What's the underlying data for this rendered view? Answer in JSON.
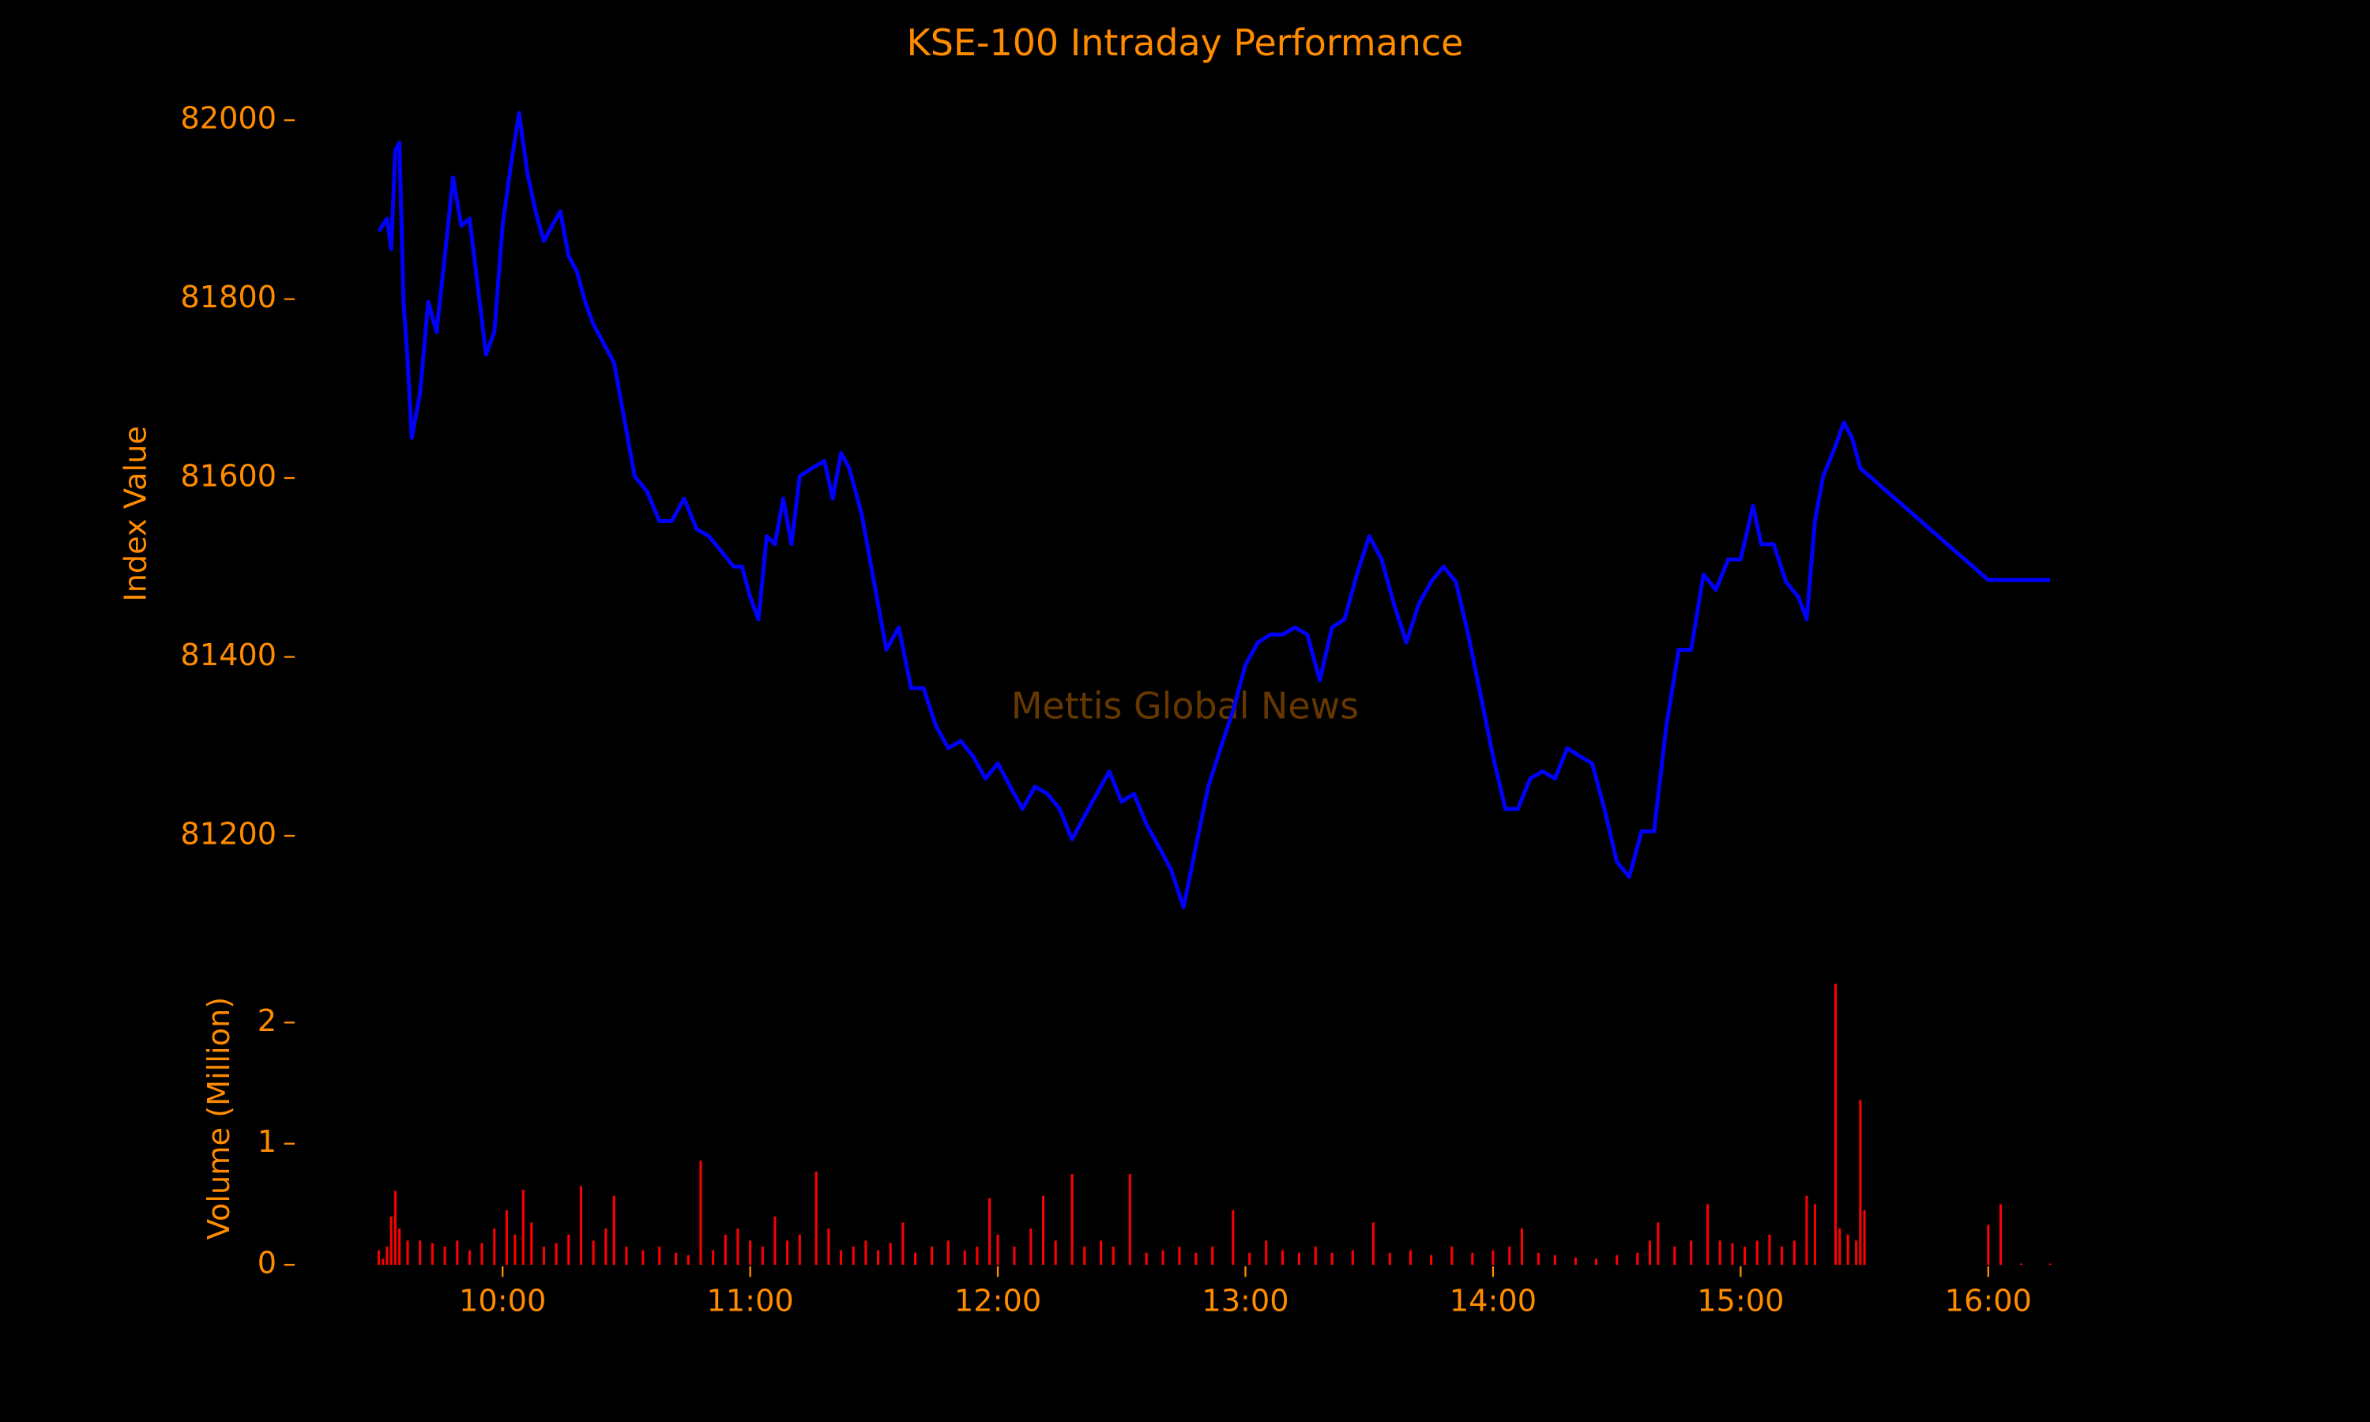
{
  "chart_data": [
    {
      "type": "line",
      "title": "KSE-100 Intraday Performance",
      "ylabel": "Index Value",
      "annotation": "Mettis Global News",
      "color": "#0000ff",
      "xlim": [
        "09:10",
        "16:35"
      ],
      "ylim": [
        81065,
        82055
      ],
      "yticks": [
        81200,
        81400,
        81600,
        81800,
        82000
      ],
      "x": [
        "09:30",
        "09:32",
        "09:33",
        "09:34",
        "09:35",
        "09:36",
        "09:37",
        "09:38",
        "09:40",
        "09:42",
        "09:44",
        "09:46",
        "09:48",
        "09:50",
        "09:52",
        "09:54",
        "09:56",
        "09:58",
        "10:00",
        "10:02",
        "10:04",
        "10:06",
        "10:08",
        "10:10",
        "10:12",
        "10:14",
        "10:16",
        "10:18",
        "10:20",
        "10:22",
        "10:25",
        "10:27",
        "10:30",
        "10:32",
        "10:35",
        "10:38",
        "10:41",
        "10:44",
        "10:47",
        "10:50",
        "10:53",
        "10:56",
        "10:58",
        "11:00",
        "11:02",
        "11:04",
        "11:06",
        "11:08",
        "11:10",
        "11:12",
        "11:15",
        "11:18",
        "11:20",
        "11:22",
        "11:24",
        "11:27",
        "11:30",
        "11:33",
        "11:36",
        "11:39",
        "11:42",
        "11:45",
        "11:48",
        "11:51",
        "11:54",
        "11:57",
        "12:00",
        "12:03",
        "12:06",
        "12:09",
        "12:12",
        "12:15",
        "12:18",
        "12:21",
        "12:24",
        "12:27",
        "12:30",
        "12:33",
        "12:36",
        "12:39",
        "12:42",
        "12:45",
        "12:48",
        "12:51",
        "12:54",
        "12:57",
        "13:00",
        "13:03",
        "13:06",
        "13:09",
        "13:12",
        "13:15",
        "13:18",
        "13:21",
        "13:24",
        "13:27",
        "13:30",
        "13:33",
        "13:36",
        "13:39",
        "13:42",
        "13:45",
        "13:48",
        "13:51",
        "13:54",
        "13:57",
        "14:00",
        "14:03",
        "14:06",
        "14:09",
        "14:12",
        "14:15",
        "14:18",
        "14:21",
        "14:24",
        "14:27",
        "14:30",
        "14:33",
        "14:36",
        "14:39",
        "14:42",
        "14:45",
        "14:48",
        "14:51",
        "14:54",
        "14:57",
        "15:00",
        "15:03",
        "15:05",
        "15:08",
        "15:11",
        "15:14",
        "15:16",
        "15:18",
        "15:20",
        "15:23",
        "15:25",
        "15:27",
        "15:29",
        "16:00",
        "16:15"
      ],
      "values": [
        81876,
        81890,
        81856,
        81966,
        81975,
        81797,
        81730,
        81645,
        81695,
        81797,
        81763,
        81848,
        81936,
        81882,
        81890,
        81814,
        81738,
        81763,
        81882,
        81949,
        82008,
        81941,
        81898,
        81865,
        81882,
        81898,
        81848,
        81831,
        81797,
        81772,
        81746,
        81729,
        81653,
        81602,
        81585,
        81552,
        81552,
        81577,
        81543,
        81535,
        81518,
        81501,
        81501,
        81467,
        81442,
        81535,
        81526,
        81577,
        81526,
        81602,
        81611,
        81619,
        81577,
        81628,
        81611,
        81560,
        81484,
        81408,
        81433,
        81365,
        81365,
        81323,
        81298,
        81306,
        81289,
        81264,
        81281,
        81255,
        81230,
        81255,
        81247,
        81230,
        81196,
        81222,
        81247,
        81272,
        81238,
        81247,
        81213,
        81188,
        81162,
        81120,
        81188,
        81255,
        81298,
        81340,
        81391,
        81416,
        81425,
        81425,
        81433,
        81425,
        81374,
        81433,
        81442,
        81492,
        81535,
        81509,
        81459,
        81416,
        81459,
        81484,
        81501,
        81484,
        81425,
        81357,
        81289,
        81230,
        81230,
        81264,
        81272,
        81264,
        81298,
        81289,
        81281,
        81230,
        81171,
        81154,
        81205,
        81205,
        81323,
        81408,
        81408,
        81492,
        81475,
        81509,
        81509,
        81569,
        81526,
        81526,
        81484,
        81467,
        81442,
        81552,
        81602,
        81636,
        81662,
        81645,
        81611,
        81486,
        81486
      ]
    },
    {
      "type": "bar",
      "ylabel": "Volume (Million)",
      "color": "#ff0000",
      "xlim": [
        "09:10",
        "16:35"
      ],
      "ylim": [
        0,
        2.42
      ],
      "yticks": [
        0,
        1,
        2
      ],
      "xticks": [
        "10:00",
        "11:00",
        "12:00",
        "13:00",
        "14:00",
        "15:00",
        "16:00"
      ],
      "x": [
        "09:30",
        "09:31",
        "09:32",
        "09:33",
        "09:34",
        "09:35",
        "09:37",
        "09:40",
        "09:43",
        "09:46",
        "09:49",
        "09:52",
        "09:55",
        "09:58",
        "10:01",
        "10:03",
        "10:05",
        "10:07",
        "10:10",
        "10:13",
        "10:16",
        "10:19",
        "10:22",
        "10:25",
        "10:27",
        "10:30",
        "10:34",
        "10:38",
        "10:42",
        "10:45",
        "10:48",
        "10:51",
        "10:54",
        "10:57",
        "11:00",
        "11:03",
        "11:06",
        "11:09",
        "11:12",
        "11:16",
        "11:19",
        "11:22",
        "11:25",
        "11:28",
        "11:31",
        "11:34",
        "11:37",
        "11:40",
        "11:44",
        "11:48",
        "11:52",
        "11:55",
        "11:58",
        "12:00",
        "12:04",
        "12:08",
        "12:11",
        "12:14",
        "12:18",
        "12:21",
        "12:25",
        "12:28",
        "12:32",
        "12:36",
        "12:40",
        "12:44",
        "12:48",
        "12:52",
        "12:57",
        "13:01",
        "13:05",
        "13:09",
        "13:13",
        "13:17",
        "13:21",
        "13:26",
        "13:31",
        "13:35",
        "13:40",
        "13:45",
        "13:50",
        "13:55",
        "14:00",
        "14:04",
        "14:07",
        "14:11",
        "14:15",
        "14:20",
        "14:25",
        "14:30",
        "14:35",
        "14:38",
        "14:40",
        "14:44",
        "14:48",
        "14:52",
        "14:55",
        "14:58",
        "15:01",
        "15:04",
        "15:07",
        "15:10",
        "15:13",
        "15:16",
        "15:18",
        "15:23",
        "15:24",
        "15:26",
        "15:28",
        "15:29",
        "15:30",
        "16:00",
        "16:03",
        "16:08",
        "16:15"
      ],
      "values": [
        0.12,
        0.05,
        0.15,
        0.4,
        0.61,
        0.3,
        0.2,
        0.2,
        0.18,
        0.15,
        0.2,
        0.12,
        0.18,
        0.3,
        0.45,
        0.25,
        0.62,
        0.35,
        0.15,
        0.18,
        0.25,
        0.65,
        0.2,
        0.3,
        0.57,
        0.15,
        0.12,
        0.15,
        0.1,
        0.08,
        0.86,
        0.12,
        0.25,
        0.3,
        0.2,
        0.15,
        0.4,
        0.2,
        0.25,
        0.77,
        0.3,
        0.12,
        0.15,
        0.2,
        0.12,
        0.18,
        0.35,
        0.1,
        0.15,
        0.2,
        0.12,
        0.15,
        0.55,
        0.25,
        0.15,
        0.3,
        0.57,
        0.2,
        0.75,
        0.15,
        0.2,
        0.15,
        0.75,
        0.1,
        0.12,
        0.15,
        0.1,
        0.15,
        0.45,
        0.1,
        0.2,
        0.12,
        0.1,
        0.15,
        0.1,
        0.12,
        0.35,
        0.1,
        0.12,
        0.08,
        0.15,
        0.1,
        0.12,
        0.15,
        0.3,
        0.1,
        0.08,
        0.06,
        0.05,
        0.08,
        0.1,
        0.2,
        0.35,
        0.15,
        0.2,
        0.5,
        0.2,
        0.18,
        0.15,
        0.2,
        0.25,
        0.15,
        0.2,
        0.57,
        0.5,
        2.32,
        0.3,
        0.25,
        0.2,
        1.36,
        0.45,
        0.33,
        0.5,
        0.01,
        0.01
      ]
    }
  ]
}
